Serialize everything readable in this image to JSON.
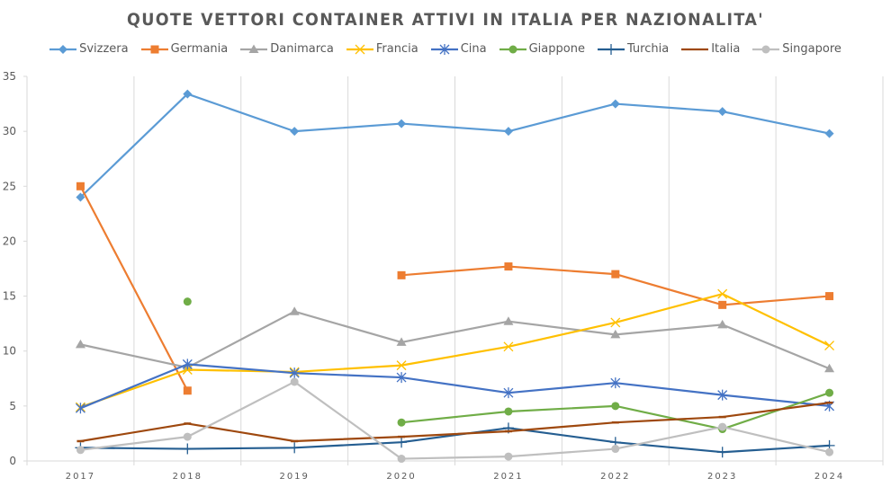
{
  "chart_data": {
    "type": "line",
    "title": "QUOTE VETTORI CONTAINER ATTIVI IN ITALIA PER NAZIONALITA'",
    "xlabel": "",
    "ylabel": "",
    "categories": [
      "2017",
      "2018",
      "2019",
      "2020",
      "2021",
      "2022",
      "2023",
      "2024"
    ],
    "ylim": [
      0,
      35
    ],
    "yticks": [
      "0",
      "5",
      "10",
      "15",
      "20",
      "25",
      "30",
      "35"
    ],
    "grid": "vertical",
    "legend_position": "top",
    "series": [
      {
        "name": "Svizzera",
        "color": "#5B9BD5",
        "marker": "diamond",
        "values": [
          24.0,
          33.4,
          30.0,
          30.7,
          30.0,
          32.5,
          31.8,
          29.8
        ]
      },
      {
        "name": "Germania",
        "color": "#ED7D31",
        "marker": "square",
        "values": [
          25.0,
          6.4,
          null,
          16.9,
          17.7,
          17.0,
          14.2,
          15.0
        ]
      },
      {
        "name": "Danimarca",
        "color": "#A5A5A5",
        "marker": "triangle",
        "values": [
          10.6,
          8.5,
          13.6,
          10.8,
          12.7,
          11.5,
          12.4,
          8.4
        ]
      },
      {
        "name": "Francia",
        "color": "#FFC000",
        "marker": "x",
        "values": [
          4.9,
          8.3,
          8.1,
          8.7,
          10.4,
          12.6,
          15.2,
          10.5
        ]
      },
      {
        "name": "Cina",
        "color": "#4472C4",
        "marker": "star",
        "values": [
          4.8,
          8.8,
          8.0,
          7.6,
          6.2,
          7.1,
          6.0,
          5.0
        ]
      },
      {
        "name": "Giappone",
        "color": "#70AD47",
        "marker": "circle",
        "values": [
          null,
          14.5,
          null,
          3.5,
          4.5,
          5.0,
          2.9,
          6.2
        ]
      },
      {
        "name": "Turchia",
        "color": "#255E91",
        "marker": "plus",
        "values": [
          1.2,
          1.1,
          1.2,
          1.7,
          3.0,
          1.7,
          0.8,
          1.4
        ]
      },
      {
        "name": "Italia",
        "color": "#9E480E",
        "marker": "dash",
        "values": [
          1.8,
          3.4,
          1.8,
          2.2,
          2.7,
          3.5,
          4.0,
          5.3
        ]
      },
      {
        "name": "Singapore",
        "color": "#BFBFBF",
        "marker": "circle",
        "values": [
          1.0,
          2.2,
          7.2,
          0.2,
          0.4,
          1.1,
          3.1,
          0.8
        ]
      }
    ]
  }
}
